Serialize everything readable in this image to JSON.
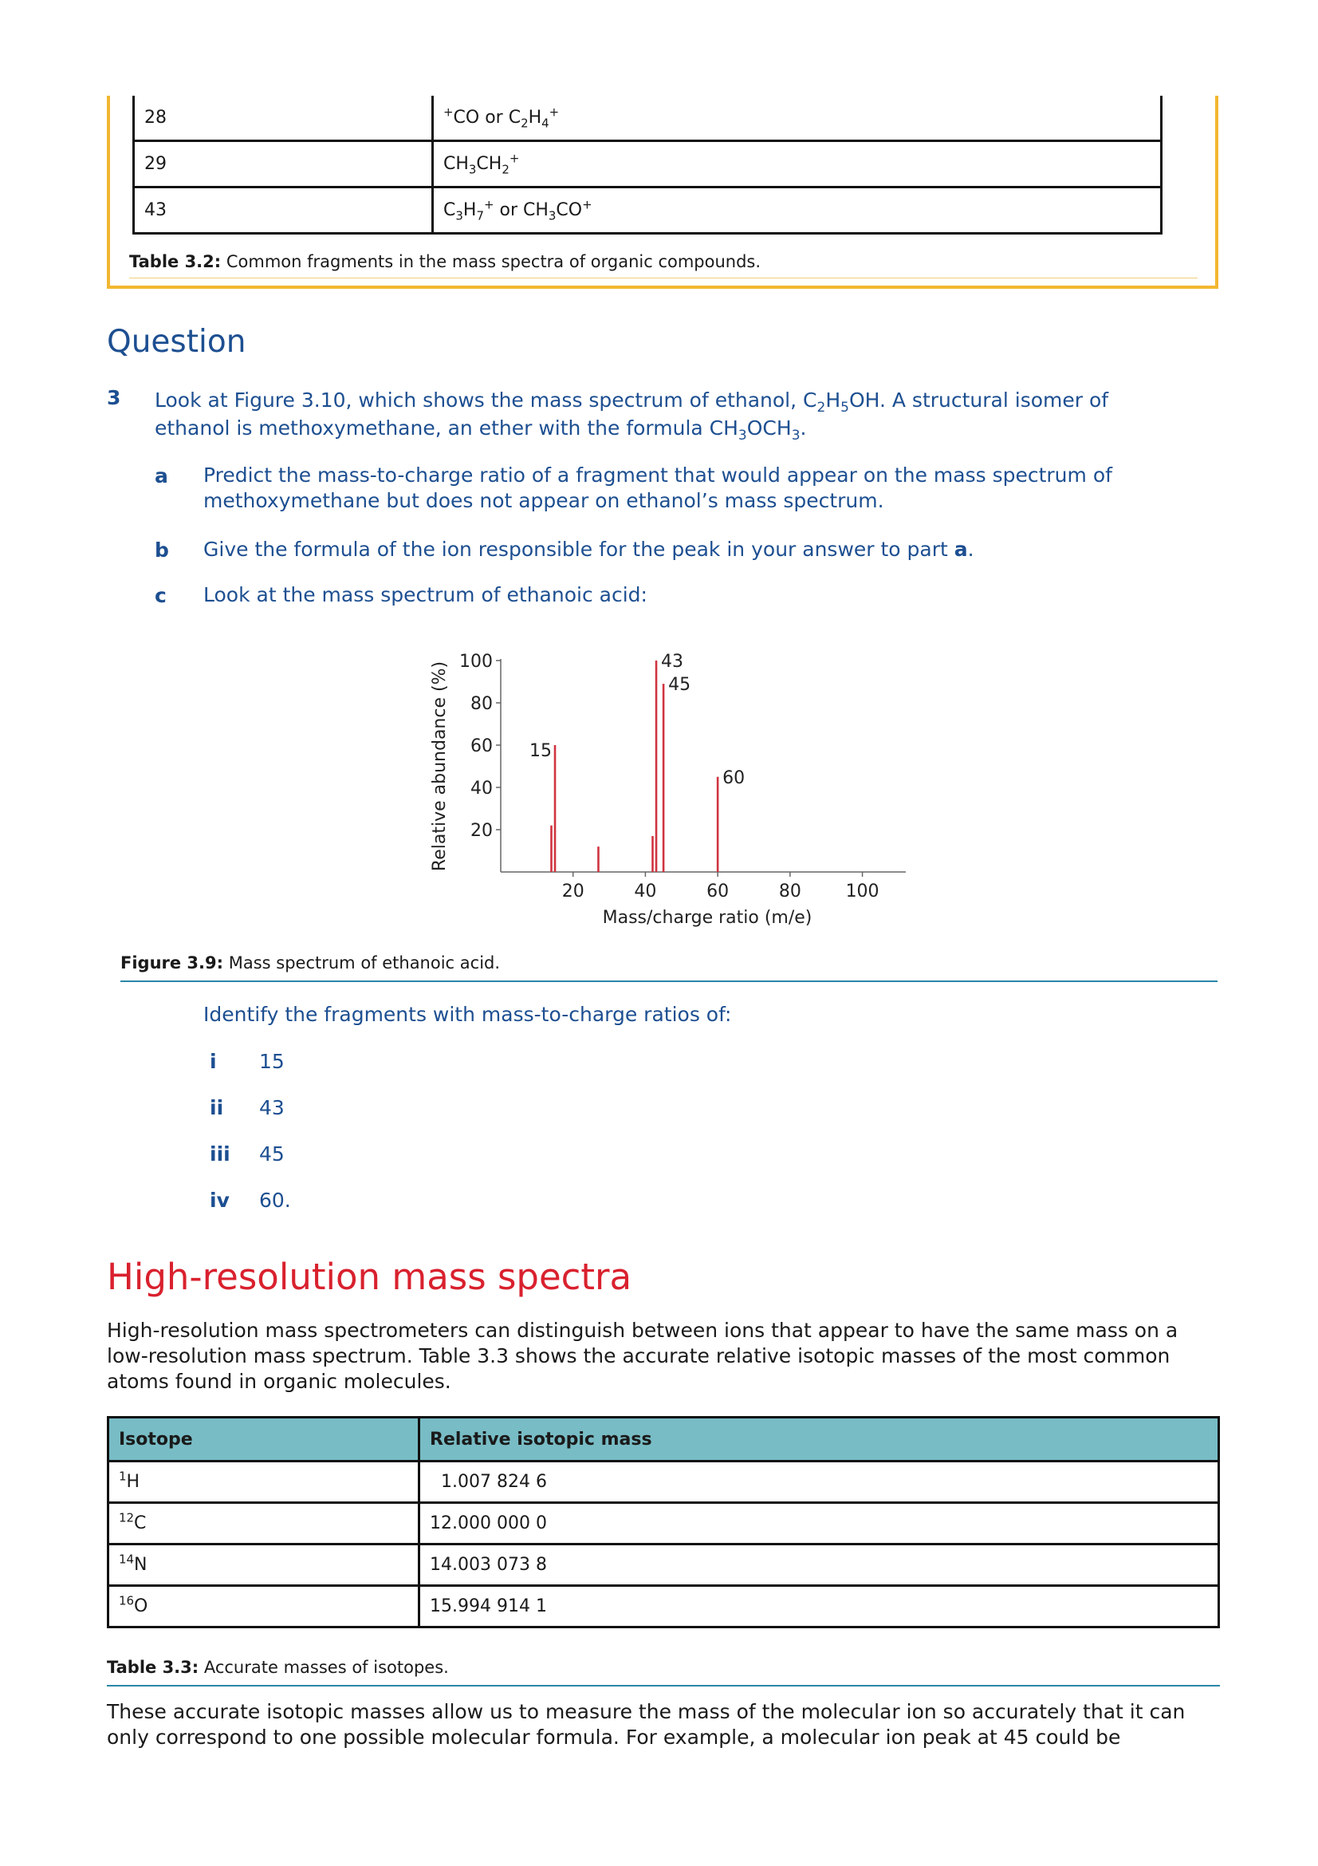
{
  "table32": {
    "rows": [
      {
        "mass": "28",
        "fragment_html": "<sup>+</sup>CO or C<sub>2</sub>H<sub>4</sub><sup>+</sup>"
      },
      {
        "mass": "29",
        "fragment_html": "CH<sub>3</sub>CH<sub>2</sub><sup>+</sup>"
      },
      {
        "mass": "43",
        "fragment_html": "C<sub>3</sub>H<sub>7</sub><sup>+</sup> or CH<sub>3</sub>CO<sup>+</sup>"
      }
    ],
    "caption_label": "Table 3.2:",
    "caption_text": " Common fragments in the mass spectra of organic compounds."
  },
  "question": {
    "heading": "Question",
    "number": "3",
    "stem_html": "Look at Figure 3.10, which shows the mass spectrum of ethanol, C<sub>2</sub>H<sub>5</sub>OH. A structural isomer of ethanol is methoxymethane, an ether with the formula CH<sub>3</sub>OCH<sub>3</sub>.",
    "parts": [
      {
        "label": "a",
        "text_html": "Predict the mass-to-charge ratio of a fragment that would appear on the mass spectrum of methoxymethane but does not appear on ethanol’s mass spectrum."
      },
      {
        "label": "b",
        "text_html": "Give the formula of the ion responsible for the peak in your answer to part <b>a</b>."
      },
      {
        "label": "c",
        "text_html": "Look at the mass spectrum of ethanoic acid:"
      }
    ],
    "identify_text": "Identify the fragments with mass-to-charge ratios of:",
    "identify_items": [
      {
        "label": "i",
        "value": "15"
      },
      {
        "label": "ii",
        "value": "43"
      },
      {
        "label": "iii",
        "value": "45"
      },
      {
        "label": "iv",
        "value": "60."
      }
    ]
  },
  "chart_data": {
    "type": "bar",
    "title": "",
    "xlabel": "Mass/charge ratio (m/e)",
    "ylabel": "Relative abundance (%)",
    "xlim": [
      0,
      112
    ],
    "ylim": [
      0,
      100
    ],
    "xticks": [
      20,
      40,
      60,
      80,
      100
    ],
    "yticks": [
      20,
      40,
      60,
      80,
      100
    ],
    "color": "#d0343f",
    "peaks": [
      {
        "x": 14,
        "y": 22,
        "label": ""
      },
      {
        "x": 15,
        "y": 60,
        "label": "15"
      },
      {
        "x": 27,
        "y": 12,
        "label": ""
      },
      {
        "x": 42,
        "y": 17,
        "label": ""
      },
      {
        "x": 43,
        "y": 100,
        "label": "43"
      },
      {
        "x": 45,
        "y": 89,
        "label": "45"
      },
      {
        "x": 60,
        "y": 45,
        "label": "60"
      }
    ]
  },
  "figure39": {
    "caption_label": "Figure 3.9:",
    "caption_text": " Mass spectrum of ethanoic acid."
  },
  "highres": {
    "heading": "High-resolution mass spectra",
    "intro": "High-resolution mass spectrometers can distinguish between ions that appear to have the same mass on a low-resolution mass spectrum. Table 3.3 shows the accurate relative isotopic masses of the most common atoms found in organic molecules.",
    "table33": {
      "headers": [
        "Isotope",
        "Relative isotopic mass"
      ],
      "rows": [
        {
          "isotope_html": "<sup>1</sup>H",
          "mass": "  1.007 824 6"
        },
        {
          "isotope_html": "<sup>12</sup>C",
          "mass": "12.000 000 0"
        },
        {
          "isotope_html": "<sup>14</sup>N",
          "mass": "14.003 073 8"
        },
        {
          "isotope_html": "<sup>16</sup>O",
          "mass": "15.994 914 1"
        }
      ],
      "caption_label": "Table 3.3:",
      "caption_text": " Accurate masses of isotopes."
    },
    "closing": "These accurate isotopic masses allow us to measure the mass of the molecular ion so accurately that it can only correspond to one possible molecular formula. For example, a molecular ion peak at 45 could be"
  },
  "colors": {
    "question_blue": "#1d4f91",
    "heading_red": "#d9212e",
    "box_yellow": "#f2b731",
    "table_header_teal": "#78bcc5",
    "rule_teal": "#2a86a8"
  }
}
